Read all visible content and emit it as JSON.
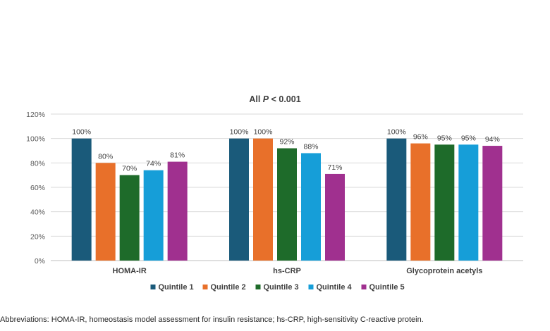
{
  "chart_data": {
    "type": "bar",
    "title_prefix": "All ",
    "title_italic": "P",
    "title_suffix": " < 0.001",
    "categories": [
      "HOMA-IR",
      "hs-CRP",
      "Glycoprotein acetyls"
    ],
    "series": [
      {
        "name": "Quintile 1",
        "color": "#1a5a7a",
        "values": [
          100,
          100,
          100
        ],
        "labels": [
          "100%",
          "100%",
          "100%"
        ]
      },
      {
        "name": "Quintile 2",
        "color": "#e8702a",
        "values": [
          80,
          100,
          96
        ],
        "labels": [
          "80%",
          "100%",
          "96%"
        ]
      },
      {
        "name": "Quintile 3",
        "color": "#1e6b2a",
        "values": [
          70,
          92,
          95
        ],
        "labels": [
          "70%",
          "92%",
          "95%"
        ]
      },
      {
        "name": "Quintile 4",
        "color": "#169ed8",
        "values": [
          74,
          88,
          95
        ],
        "labels": [
          "74%",
          "88%",
          "95%"
        ]
      },
      {
        "name": "Quintile 5",
        "color": "#a0308f",
        "values": [
          81,
          71,
          94
        ],
        "labels": [
          "81%",
          "71%",
          "94%"
        ]
      }
    ],
    "ylim": [
      0,
      120
    ],
    "yticks": [
      0,
      20,
      40,
      60,
      80,
      100,
      120
    ],
    "ytick_labels": [
      "0%",
      "20%",
      "40%",
      "60%",
      "80%",
      "100%",
      "120%"
    ],
    "grid": true,
    "legend_position": "bottom"
  },
  "footnote": "Abbreviations: HOMA-IR, homeostasis model assessment for insulin resistance; hs-CRP, high-sensitivity C-reactive protein."
}
